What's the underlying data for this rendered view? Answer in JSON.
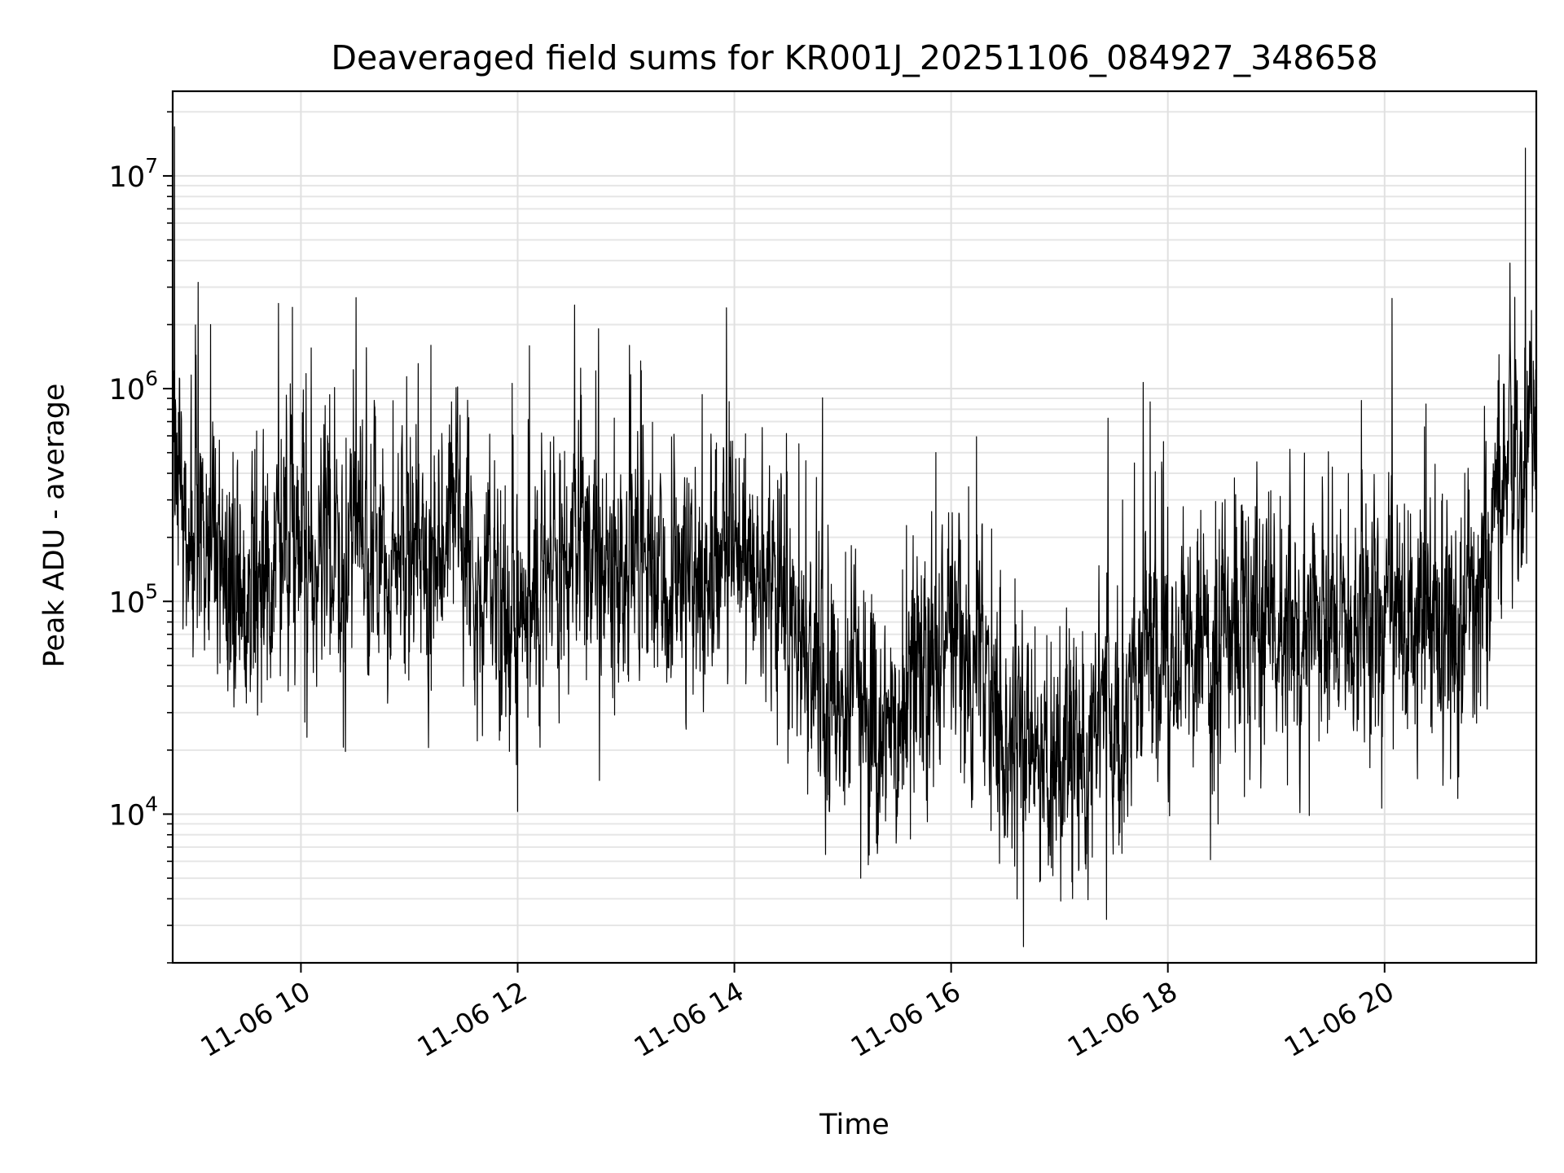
{
  "chart_data": {
    "type": "line",
    "title": "Deaveraged field sums for KR001J_20251106_084927_348658",
    "xlabel": "Time",
    "ylabel": "Peak ADU - average",
    "x_scale": "time",
    "y_scale": "log",
    "xlim": [
      "2025-11-06 08:49",
      "2025-11-06 21:24"
    ],
    "ylim": [
      2000,
      25000000
    ],
    "grid": true,
    "line_color": "#000000",
    "x_ticks": [
      {
        "value": "2025-11-06 10:00",
        "label": "11-06 10"
      },
      {
        "value": "2025-11-06 12:00",
        "label": "11-06 12"
      },
      {
        "value": "2025-11-06 14:00",
        "label": "11-06 14"
      },
      {
        "value": "2025-11-06 16:00",
        "label": "11-06 16"
      },
      {
        "value": "2025-11-06 18:00",
        "label": "11-06 18"
      },
      {
        "value": "2025-11-06 20:00",
        "label": "11-06 20"
      }
    ],
    "y_ticks": [
      {
        "value": 10000,
        "base": "10",
        "exp": "4"
      },
      {
        "value": 100000,
        "base": "10",
        "exp": "5"
      },
      {
        "value": 1000000,
        "base": "10",
        "exp": "6"
      },
      {
        "value": 10000000,
        "base": "10",
        "exp": "7"
      }
    ],
    "series": [
      {
        "x": [
          "2025-11-06 08:49",
          "2025-11-06 08:50",
          "2025-11-06 08:55",
          "2025-11-06 09:00",
          "2025-11-06 09:10",
          "2025-11-06 09:20",
          "2025-11-06 09:30",
          "2025-11-06 09:40",
          "2025-11-06 10:00",
          "2025-11-06 10:20",
          "2025-11-06 10:40",
          "2025-11-06 11:00",
          "2025-11-06 11:15",
          "2025-11-06 11:30",
          "2025-11-06 11:45",
          "2025-11-06 12:00",
          "2025-11-06 12:15",
          "2025-11-06 12:30",
          "2025-11-06 12:45",
          "2025-11-06 13:00",
          "2025-11-06 13:30",
          "2025-11-06 14:00",
          "2025-11-06 14:20",
          "2025-11-06 14:35",
          "2025-11-06 14:50",
          "2025-11-06 15:05",
          "2025-11-06 15:20",
          "2025-11-06 15:40",
          "2025-11-06 16:00",
          "2025-11-06 16:20",
          "2025-11-06 16:40",
          "2025-11-06 17:00",
          "2025-11-06 17:15",
          "2025-11-06 17:30",
          "2025-11-06 17:50",
          "2025-11-06 18:10",
          "2025-11-06 18:40",
          "2025-11-06 19:00",
          "2025-11-06 19:30",
          "2025-11-06 20:00",
          "2025-11-06 20:30",
          "2025-11-06 20:50",
          "2025-11-06 21:00",
          "2025-11-06 21:10",
          "2025-11-06 21:24"
        ],
        "y": [
          300000,
          400000,
          250000,
          300000,
          270000,
          120000,
          110000,
          130000,
          160000,
          200000,
          160000,
          130000,
          200000,
          280000,
          80000,
          100000,
          150000,
          180000,
          130000,
          140000,
          160000,
          150000,
          130000,
          60000,
          40000,
          32000,
          24000,
          42000,
          60000,
          30000,
          22000,
          17000,
          20000,
          30000,
          55000,
          60000,
          70000,
          75000,
          75000,
          80000,
          85000,
          70000,
          250000,
          430000,
          500000
        ]
      }
    ]
  }
}
